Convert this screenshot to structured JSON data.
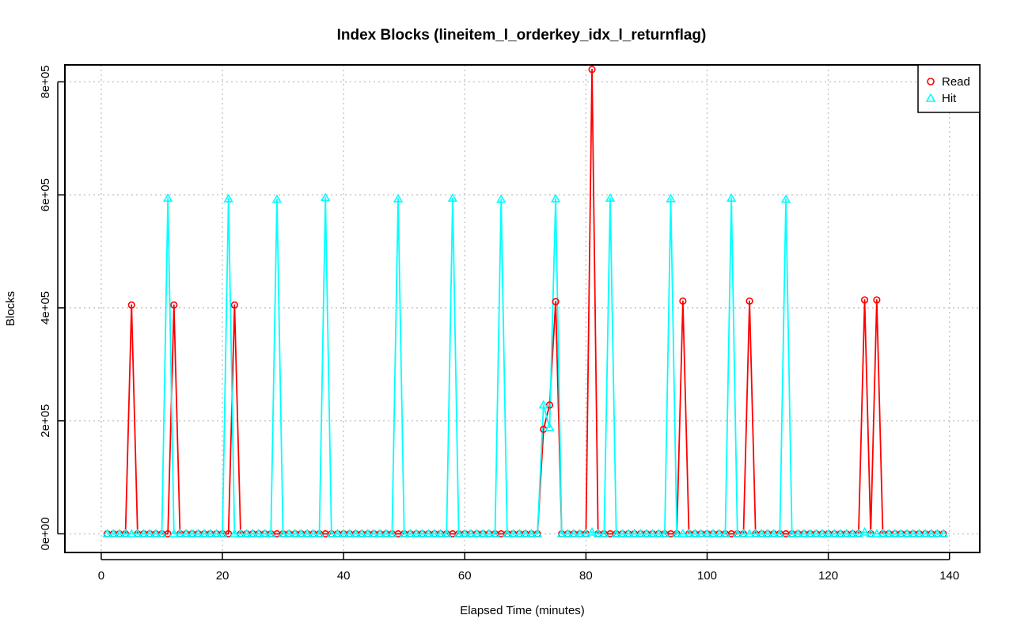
{
  "chart_data": {
    "type": "line",
    "title": "Index Blocks (lineitem_l_orderkey_idx_l_returnflag)",
    "xlabel": "Elapsed Time (minutes)",
    "ylabel": "Blocks",
    "xlim": [
      -6,
      145
    ],
    "ylim": [
      -33000,
      830000
    ],
    "x_ticks": [
      0,
      20,
      40,
      60,
      80,
      100,
      120,
      140
    ],
    "x_tick_labels": [
      "0",
      "20",
      "40",
      "60",
      "80",
      "100",
      "120",
      "140"
    ],
    "y_ticks": [
      0,
      200000,
      400000,
      600000,
      800000
    ],
    "y_tick_labels": [
      "0e+00",
      "2e+05",
      "4e+05",
      "6e+05",
      "8e+05"
    ],
    "grid": true,
    "legend_position": "top-right",
    "x_start": 1,
    "x_end": 139,
    "series": [
      {
        "name": "Read",
        "color": "#ff0000",
        "marker": "circle",
        "spikes": [
          {
            "x": 5,
            "y": 405000
          },
          {
            "x": 12,
            "y": 405000
          },
          {
            "x": 22,
            "y": 405000
          },
          {
            "x": 73,
            "y": 185000
          },
          {
            "x": 74,
            "y": 228000
          },
          {
            "x": 75,
            "y": 411000
          },
          {
            "x": 81,
            "y": 822000
          },
          {
            "x": 96,
            "y": 412000
          },
          {
            "x": 107,
            "y": 412000
          },
          {
            "x": 126,
            "y": 414000
          },
          {
            "x": 128,
            "y": 414000
          }
        ]
      },
      {
        "name": "Hit",
        "color": "#00ffff",
        "marker": "triangle",
        "spikes": [
          {
            "x": 11,
            "y": 594000
          },
          {
            "x": 21,
            "y": 593000
          },
          {
            "x": 29,
            "y": 592000
          },
          {
            "x": 37,
            "y": 595000
          },
          {
            "x": 49,
            "y": 593000
          },
          {
            "x": 58,
            "y": 594000
          },
          {
            "x": 66,
            "y": 592000
          },
          {
            "x": 73,
            "y": 228000
          },
          {
            "x": 74,
            "y": 188000
          },
          {
            "x": 75,
            "y": 593000
          },
          {
            "x": 81,
            "y": 3000
          },
          {
            "x": 84,
            "y": 594000
          },
          {
            "x": 94,
            "y": 593000
          },
          {
            "x": 104,
            "y": 594000
          },
          {
            "x": 113,
            "y": 592000
          },
          {
            "x": 126,
            "y": 3000
          }
        ]
      }
    ]
  }
}
